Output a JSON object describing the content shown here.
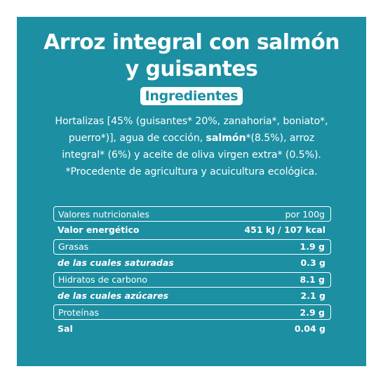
{
  "product": {
    "title_line1": "Arroz integral con salmón",
    "title_line2": "y guisantes"
  },
  "ingredients": {
    "badge": "Ingredientes",
    "line1": "Hortalizas [45% (guisantes* 20%, zanahoria*, boniato*,",
    "line2_before": "puerro*)], agua de cocción, ",
    "line2_bold": "salmón",
    "line2_after": "*(8.5%), arroz",
    "line3": "integral* (6%) y aceite de oliva virgen extra* (0.5%).",
    "line4": "*Procedente de agricultura y acuicultura ecológica."
  },
  "nutrition": {
    "header_label": "Valores nutricionales",
    "header_value": "por 100g",
    "rows": [
      {
        "label": "Valor energético",
        "value": "451 kJ / 107 kcal"
      },
      {
        "label": "Grasas",
        "value": "1.9 g"
      },
      {
        "label": "de las cuales saturadas",
        "value": "0.3 g"
      },
      {
        "label": "Hidratos de carbono",
        "value": "8.1 g"
      },
      {
        "label": "de las cuales azúcares",
        "value": "2.1 g"
      },
      {
        "label": "Proteínas",
        "value": "2.9 g"
      },
      {
        "label": "Sal",
        "value": "0.04 g"
      }
    ]
  },
  "colors": {
    "panel": "#1c8fa2",
    "text": "#ffffff"
  }
}
